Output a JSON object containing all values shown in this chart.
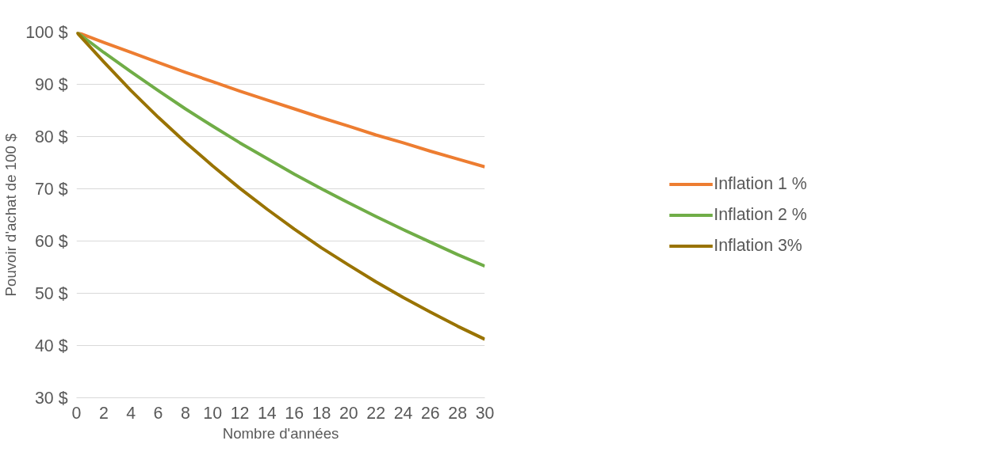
{
  "chart_data": {
    "type": "line",
    "xlabel": "Nombre d'années",
    "ylabel": "Pouvoir d'achat de 100 $",
    "x": [
      0,
      2,
      4,
      6,
      8,
      10,
      12,
      14,
      16,
      18,
      20,
      22,
      24,
      26,
      28,
      30
    ],
    "series": [
      {
        "name": "Inflation 1 %",
        "color": "#ed7d31",
        "values": [
          100,
          98.0,
          96.1,
          94.2,
          92.3,
          90.5,
          88.7,
          87.0,
          85.3,
          83.6,
          82.0,
          80.3,
          78.8,
          77.2,
          75.7,
          74.2
        ]
      },
      {
        "name": "Inflation 2 %",
        "color": "#70ad47",
        "values": [
          100,
          96.1,
          92.4,
          88.8,
          85.3,
          82.0,
          78.8,
          75.8,
          72.8,
          70.0,
          67.3,
          64.7,
          62.2,
          59.8,
          57.4,
          55.2
        ]
      },
      {
        "name": "Inflation 3%",
        "color": "#997300",
        "values": [
          100,
          94.3,
          88.8,
          83.7,
          78.9,
          74.4,
          70.1,
          66.1,
          62.3,
          58.7,
          55.4,
          52.2,
          49.2,
          46.4,
          43.7,
          41.2
        ]
      }
    ],
    "xlim": [
      0,
      30
    ],
    "xticks": [
      0,
      2,
      4,
      6,
      8,
      10,
      12,
      14,
      16,
      18,
      20,
      22,
      24,
      26,
      28,
      30
    ],
    "ylim": [
      30,
      100
    ],
    "yticks": [
      {
        "value": 30,
        "label": "30 $"
      },
      {
        "value": 40,
        "label": "40 $"
      },
      {
        "value": 50,
        "label": "50 $"
      },
      {
        "value": 60,
        "label": "60 $"
      },
      {
        "value": 70,
        "label": "70 $"
      },
      {
        "value": 80,
        "label": "80 $"
      },
      {
        "value": 90,
        "label": "90 $"
      },
      {
        "value": 100,
        "label": "100 $"
      }
    ],
    "grid": "y",
    "legend": "right",
    "marker": "none",
    "line_style": "solid"
  }
}
